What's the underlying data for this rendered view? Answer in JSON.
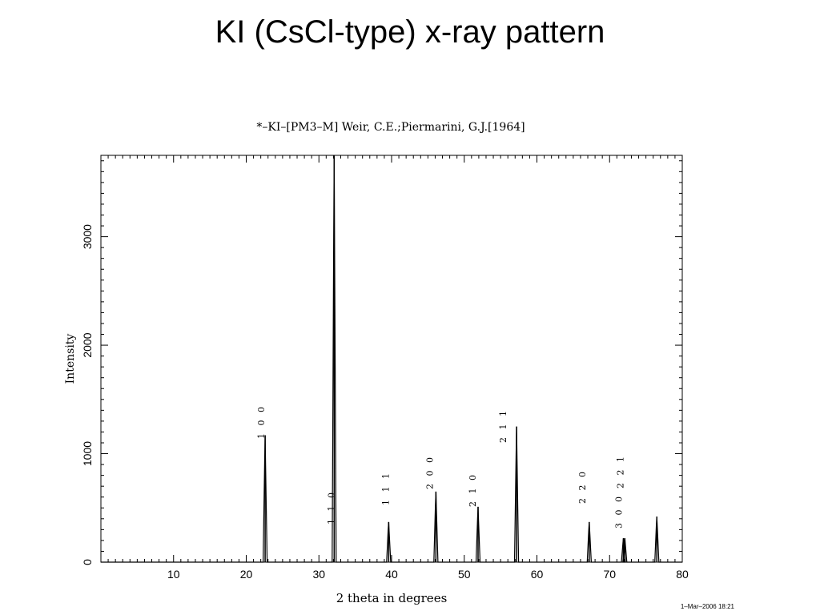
{
  "slide": {
    "title": "KI (CsCl-type) x-ray pattern"
  },
  "chart_data": {
    "type": "line",
    "title": "*–KI–[PM3–M] Weir, C.E.;Piermarini, G.J.[1964]",
    "xlabel": "2 theta in degrees",
    "ylabel": "Intensity",
    "xlim": [
      0,
      80
    ],
    "ylim": [
      0,
      3750
    ],
    "x_ticks": [
      10,
      20,
      30,
      40,
      50,
      60,
      70,
      80
    ],
    "y_ticks": [
      0,
      1000,
      2000,
      3000
    ],
    "grid": false,
    "legend": "none",
    "timestamp": "1–Mar–2006 18:21",
    "series": [
      {
        "peaks": [
          {
            "x": 22.6,
            "y": 1170,
            "hkl": "1 0 0"
          },
          {
            "x": 32.1,
            "y": 3750,
            "hkl": "1 1 0"
          },
          {
            "x": 39.6,
            "y": 370,
            "hkl": "1 1 1"
          },
          {
            "x": 46.1,
            "y": 650,
            "hkl": "2 0 0"
          },
          {
            "x": 51.9,
            "y": 510,
            "hkl": "2 1 0"
          },
          {
            "x": 57.2,
            "y": 1250,
            "hkl": "2 1 1"
          },
          {
            "x": 67.2,
            "y": 370,
            "hkl": "2 2 0"
          },
          {
            "x": 71.9,
            "y": 220,
            "hkl": "3 0 0"
          },
          {
            "x": 72.1,
            "y": 220,
            "hkl": "2 2 1"
          },
          {
            "x": 76.5,
            "y": 420,
            "hkl": ""
          }
        ]
      }
    ]
  }
}
